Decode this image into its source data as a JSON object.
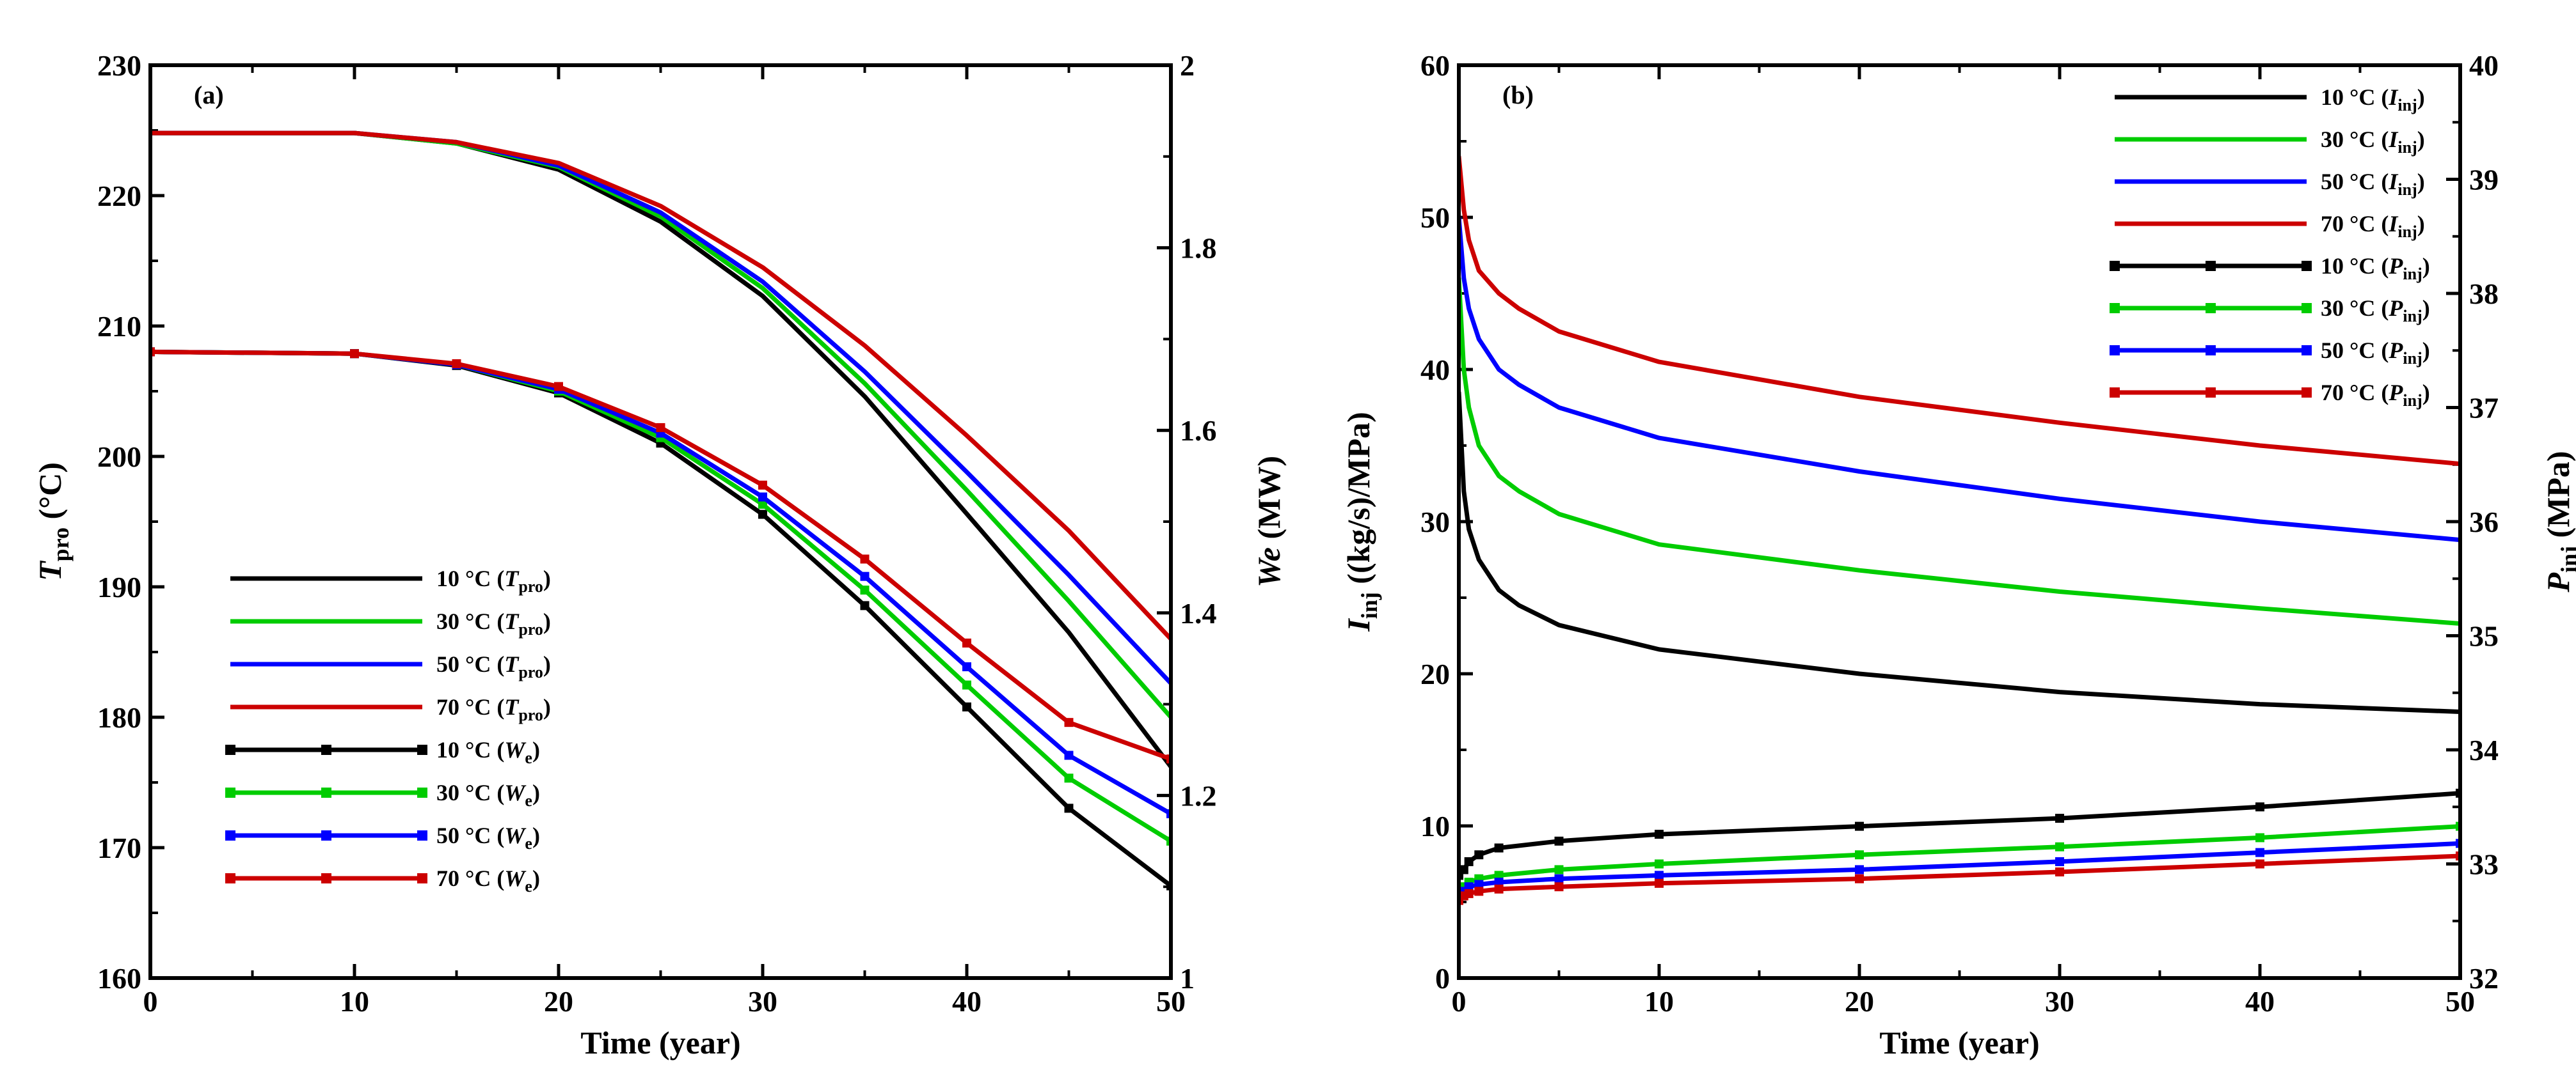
{
  "chart_data": [
    {
      "type": "line",
      "panel_label": "(a)",
      "xlabel": "Time (year)",
      "ylabel": {
        "main": "T",
        "sub": "pro",
        "unit": " (°C)"
      },
      "y2label": {
        "main": "We",
        "unit": " (MW)"
      },
      "xlim": [
        0,
        50
      ],
      "ylim": [
        160,
        230
      ],
      "y2lim": [
        1,
        2
      ],
      "xticks": [
        "0",
        "10",
        "20",
        "30",
        "40",
        "50"
      ],
      "yticks": [
        "160",
        "170",
        "180",
        "190",
        "200",
        "210",
        "220",
        "230"
      ],
      "y2ticks": [
        "1",
        "1.2",
        "1.4",
        "1.6",
        "1.8",
        "2"
      ],
      "legend_position": "bottom-left",
      "series": [
        {
          "name": "10 °C",
          "var": "T",
          "sub": "pro",
          "color": "#000000",
          "axis": "left",
          "markers": false,
          "x": [
            0,
            10,
            15,
            20,
            25,
            30,
            35,
            40,
            45,
            50
          ],
          "y": [
            224.8,
            224.8,
            224.0,
            222.0,
            218.0,
            212.3,
            204.6,
            195.6,
            186.5,
            176.2
          ]
        },
        {
          "name": "30 °C",
          "var": "T",
          "sub": "pro",
          "color": "#00cc00",
          "axis": "left",
          "markers": false,
          "x": [
            0,
            10,
            15,
            20,
            25,
            30,
            35,
            40,
            45,
            50
          ],
          "y": [
            224.8,
            224.8,
            224.0,
            222.2,
            218.4,
            212.9,
            205.6,
            197.4,
            188.9,
            180.0
          ]
        },
        {
          "name": "50 °C",
          "var": "T",
          "sub": "pro",
          "color": "#0000ff",
          "axis": "left",
          "markers": false,
          "x": [
            0,
            10,
            15,
            20,
            25,
            30,
            35,
            40,
            45,
            50
          ],
          "y": [
            224.8,
            224.8,
            224.1,
            222.3,
            218.7,
            213.4,
            206.5,
            198.8,
            190.9,
            182.6
          ]
        },
        {
          "name": "70 °C",
          "var": "T",
          "sub": "pro",
          "color": "#cc0000",
          "axis": "left",
          "markers": false,
          "x": [
            0,
            10,
            15,
            20,
            25,
            30,
            35,
            40,
            45,
            50
          ],
          "y": [
            224.8,
            224.8,
            224.1,
            222.5,
            219.2,
            214.5,
            208.5,
            201.6,
            194.3,
            186.0
          ]
        },
        {
          "name": "10 °C",
          "var": "W",
          "sub": "e",
          "color": "#000000",
          "axis": "right",
          "markers": true,
          "x": [
            0,
            10,
            15,
            20,
            25,
            30,
            35,
            40,
            45,
            50
          ],
          "y": [
            1.686,
            1.684,
            1.671,
            1.641,
            1.586,
            1.508,
            1.408,
            1.297,
            1.186,
            1.101
          ]
        },
        {
          "name": "30 °C",
          "var": "W",
          "sub": "e",
          "color": "#00cc00",
          "axis": "right",
          "markers": true,
          "x": [
            0,
            10,
            15,
            20,
            25,
            30,
            35,
            40,
            45,
            50
          ],
          "y": [
            1.686,
            1.684,
            1.672,
            1.643,
            1.592,
            1.519,
            1.425,
            1.321,
            1.219,
            1.15
          ]
        },
        {
          "name": "50 °C",
          "var": "W",
          "sub": "e",
          "color": "#0000ff",
          "axis": "right",
          "markers": true,
          "x": [
            0,
            10,
            15,
            20,
            25,
            30,
            35,
            40,
            45,
            50
          ],
          "y": [
            1.686,
            1.684,
            1.672,
            1.645,
            1.597,
            1.527,
            1.44,
            1.341,
            1.244,
            1.18
          ]
        },
        {
          "name": "70 °C",
          "var": "W",
          "sub": "e",
          "color": "#cc0000",
          "axis": "right",
          "markers": true,
          "x": [
            0,
            10,
            15,
            20,
            25,
            30,
            35,
            40,
            45,
            50
          ],
          "y": [
            1.686,
            1.684,
            1.673,
            1.648,
            1.603,
            1.54,
            1.459,
            1.367,
            1.28,
            1.24
          ]
        }
      ]
    },
    {
      "type": "line",
      "panel_label": "(b)",
      "xlabel": "Time (year)",
      "ylabel": {
        "main": "I",
        "sub": "inj",
        "unit": " ((kg/s)/MPa)"
      },
      "y2label": {
        "main": "P",
        "sub": "inj",
        "unit": " (MPa)"
      },
      "xlim": [
        0,
        50
      ],
      "ylim": [
        0,
        60
      ],
      "y2lim": [
        32,
        40
      ],
      "xticks": [
        "0",
        "10",
        "20",
        "30",
        "40",
        "50"
      ],
      "yticks": [
        "0",
        "10",
        "20",
        "30",
        "40",
        "50",
        "60"
      ],
      "y2ticks": [
        "32",
        "33",
        "34",
        "35",
        "36",
        "37",
        "38",
        "39",
        "40"
      ],
      "legend_position": "top-right",
      "series": [
        {
          "name": "10 °C",
          "var": "I",
          "sub": "inj",
          "color": "#000000",
          "axis": "left",
          "markers": false,
          "x": [
            0,
            0.25,
            0.5,
            1,
            2,
            3,
            5,
            10,
            20,
            30,
            40,
            50
          ],
          "y": [
            38.5,
            32.0,
            29.5,
            27.5,
            25.5,
            24.5,
            23.2,
            21.6,
            20.0,
            18.8,
            18.0,
            17.5
          ]
        },
        {
          "name": "30 °C",
          "var": "I",
          "sub": "inj",
          "color": "#00cc00",
          "axis": "left",
          "markers": false,
          "x": [
            0,
            0.25,
            0.5,
            1,
            2,
            3,
            5,
            10,
            20,
            30,
            40,
            50
          ],
          "y": [
            46.0,
            40.0,
            37.5,
            35.0,
            33.0,
            32.0,
            30.5,
            28.5,
            26.8,
            25.4,
            24.3,
            23.3
          ]
        },
        {
          "name": "50 °C",
          "var": "I",
          "sub": "inj",
          "color": "#0000ff",
          "axis": "left",
          "markers": false,
          "x": [
            0,
            0.25,
            0.5,
            1,
            2,
            3,
            5,
            10,
            20,
            30,
            40,
            50
          ],
          "y": [
            50.0,
            46.0,
            44.0,
            42.0,
            40.0,
            39.0,
            37.5,
            35.5,
            33.3,
            31.5,
            30.0,
            28.8
          ]
        },
        {
          "name": "70 °C",
          "var": "I",
          "sub": "inj",
          "color": "#cc0000",
          "axis": "left",
          "markers": false,
          "x": [
            0,
            0.25,
            0.5,
            1,
            2,
            3,
            5,
            10,
            20,
            30,
            40,
            50
          ],
          "y": [
            54.0,
            50.5,
            48.5,
            46.5,
            45.0,
            44.0,
            42.5,
            40.5,
            38.2,
            36.5,
            35.0,
            33.8
          ]
        },
        {
          "name": "10 °C",
          "var": "P",
          "sub": "inj",
          "color": "#000000",
          "axis": "right",
          "markers": true,
          "x": [
            0,
            0.25,
            0.5,
            1,
            2,
            5,
            10,
            20,
            30,
            40,
            50
          ],
          "y": [
            32.9,
            32.95,
            33.02,
            33.08,
            33.14,
            33.2,
            33.26,
            33.33,
            33.4,
            33.5,
            33.62
          ]
        },
        {
          "name": "30 °C",
          "var": "P",
          "sub": "inj",
          "color": "#00cc00",
          "axis": "right",
          "markers": true,
          "x": [
            0,
            0.25,
            0.5,
            1,
            2,
            5,
            10,
            20,
            30,
            40,
            50
          ],
          "y": [
            32.74,
            32.8,
            32.84,
            32.87,
            32.9,
            32.95,
            33.0,
            33.08,
            33.15,
            33.23,
            33.33
          ]
        },
        {
          "name": "50 °C",
          "var": "P",
          "sub": "inj",
          "color": "#0000ff",
          "axis": "right",
          "markers": true,
          "x": [
            0,
            0.25,
            0.5,
            1,
            2,
            5,
            10,
            20,
            30,
            40,
            50
          ],
          "y": [
            32.7,
            32.76,
            32.8,
            32.82,
            32.84,
            32.87,
            32.9,
            32.95,
            33.02,
            33.1,
            33.18
          ]
        },
        {
          "name": "70 °C",
          "var": "P",
          "sub": "inj",
          "color": "#cc0000",
          "axis": "right",
          "markers": true,
          "x": [
            0,
            0.25,
            0.5,
            1,
            2,
            5,
            10,
            20,
            30,
            40,
            50
          ],
          "y": [
            32.68,
            32.72,
            32.74,
            32.76,
            32.78,
            32.8,
            32.83,
            32.87,
            32.93,
            33.0,
            33.07
          ]
        }
      ]
    }
  ]
}
